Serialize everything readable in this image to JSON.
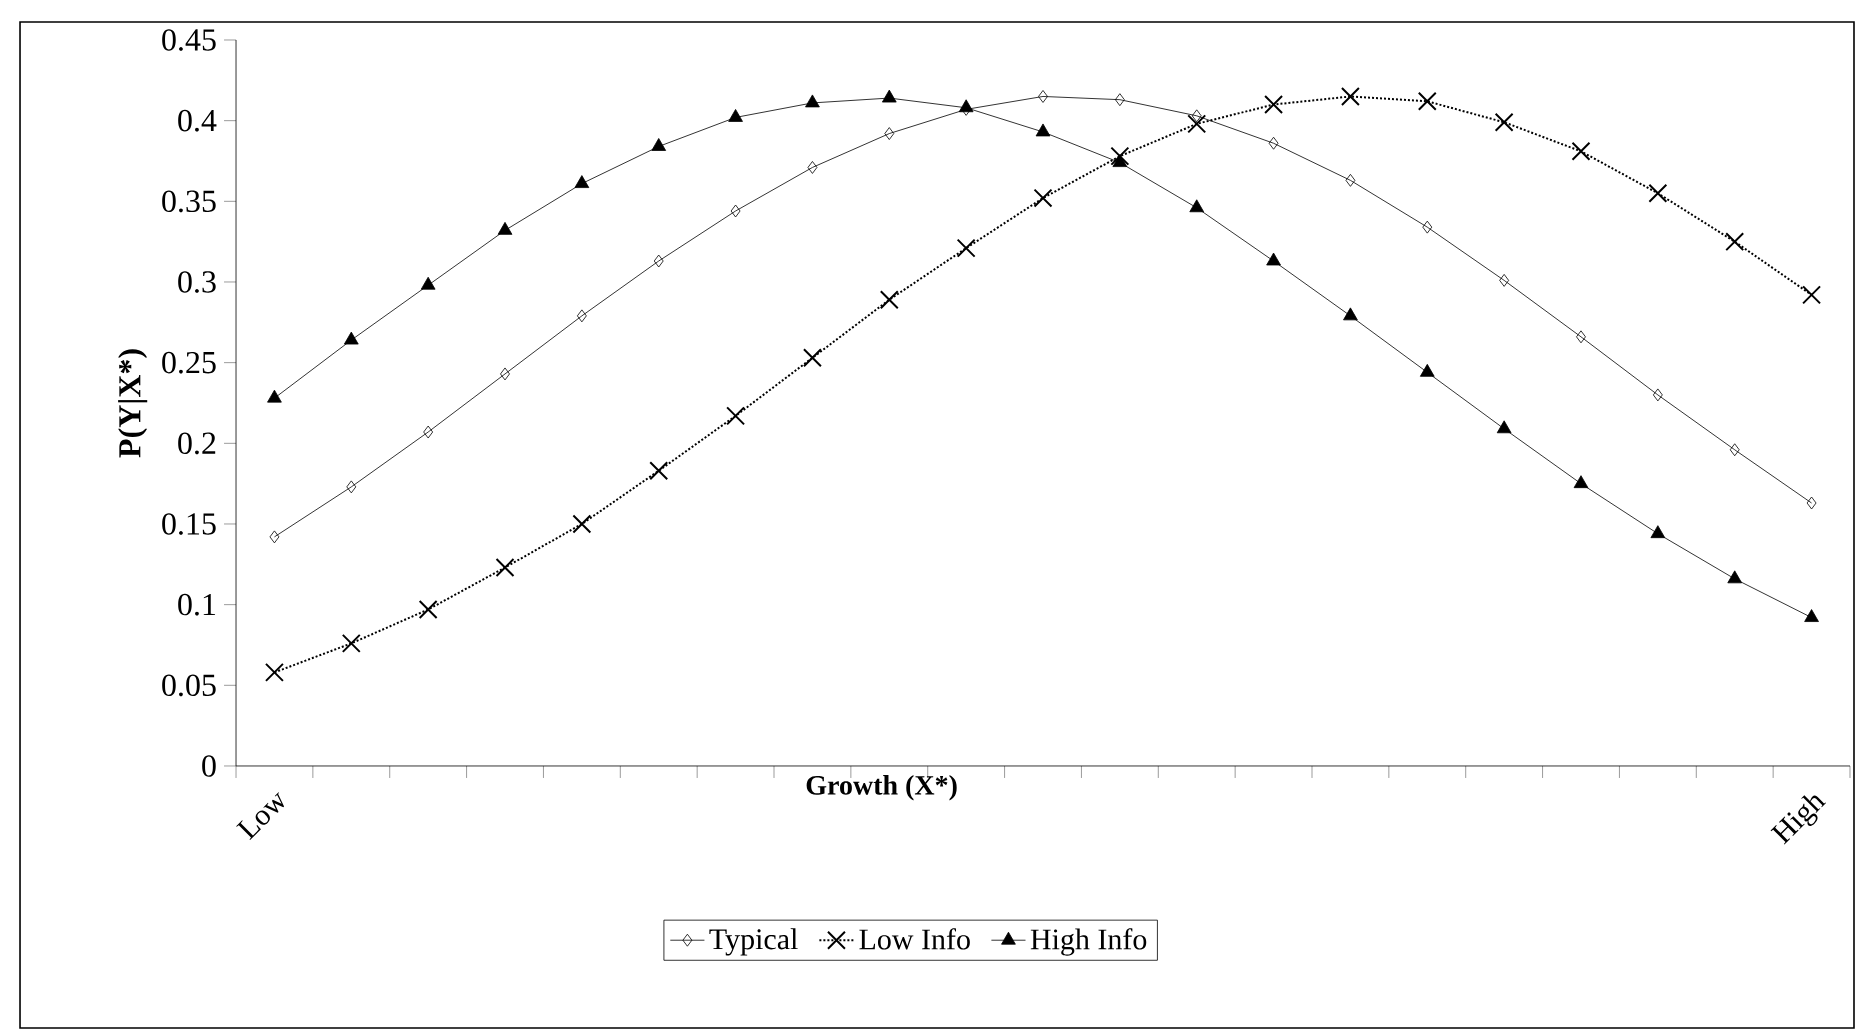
{
  "chart_data": {
    "type": "line",
    "xlabel": "Growth (X*)",
    "ylabel": "P(Y|X*)",
    "categories": [
      "Low",
      null,
      null,
      null,
      null,
      null,
      null,
      null,
      null,
      null,
      null,
      null,
      null,
      null,
      null,
      null,
      null,
      null,
      null,
      null,
      "High"
    ],
    "ylim": [
      0,
      0.45
    ],
    "yticks": [
      0,
      0.05,
      0.1,
      0.15,
      0.2,
      0.25,
      0.3,
      0.35,
      0.4,
      0.45
    ],
    "legend": "bottom",
    "grid": false,
    "series": [
      {
        "name": "Typical",
        "color": "#000000",
        "marker": "diamond",
        "line_style": "solid",
        "values": [
          0.142,
          0.173,
          0.207,
          0.243,
          0.279,
          0.313,
          0.344,
          0.371,
          0.392,
          0.407,
          0.415,
          0.413,
          0.403,
          0.386,
          0.363,
          0.334,
          0.301,
          0.266,
          0.23,
          0.196,
          0.163
        ]
      },
      {
        "name": "Low Info",
        "color": "#000000",
        "marker": "cross",
        "line_style": "dotted",
        "values": [
          0.058,
          0.076,
          0.097,
          0.123,
          0.15,
          0.183,
          0.217,
          0.253,
          0.289,
          0.321,
          0.352,
          0.378,
          0.398,
          0.41,
          0.415,
          0.412,
          0.399,
          0.381,
          0.355,
          0.325,
          0.292
        ]
      },
      {
        "name": "High Info",
        "color": "#000000",
        "marker": "triangle",
        "line_style": "solid",
        "values": [
          0.228,
          0.264,
          0.298,
          0.332,
          0.361,
          0.384,
          0.402,
          0.411,
          0.414,
          0.408,
          0.393,
          0.374,
          0.346,
          0.313,
          0.279,
          0.244,
          0.209,
          0.175,
          0.144,
          0.116,
          0.092
        ]
      }
    ]
  }
}
